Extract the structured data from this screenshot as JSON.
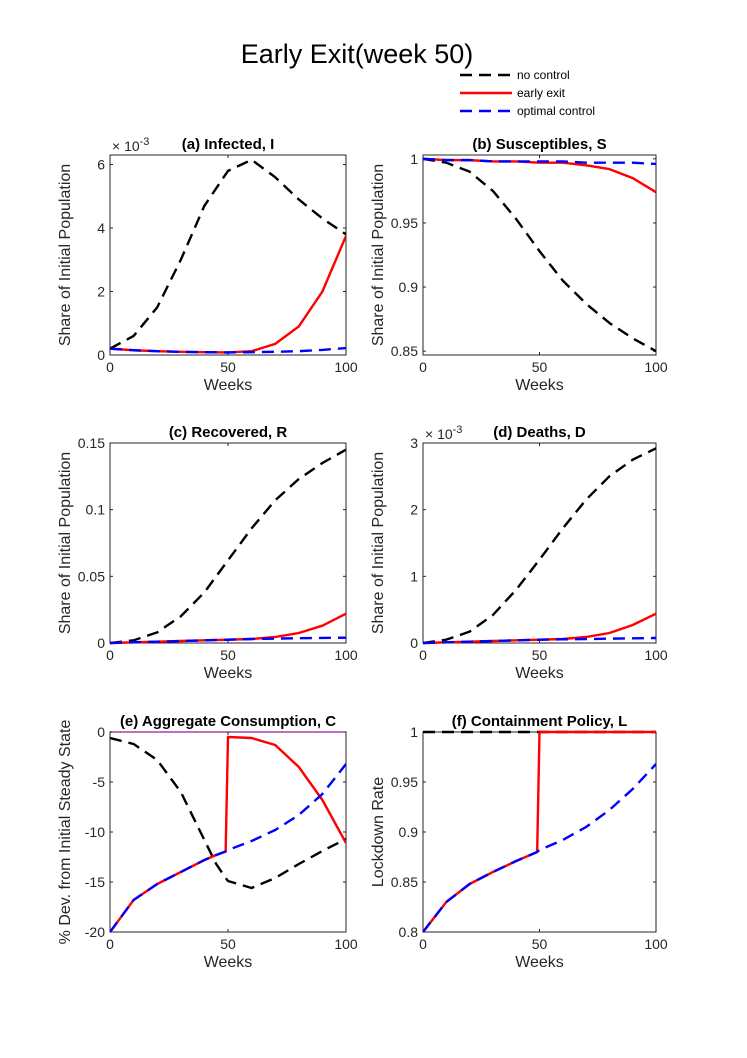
{
  "figure_title": "Early Exit(week 50)",
  "legend": [
    {
      "label": "no control",
      "color": "#000000",
      "dash": "dashed"
    },
    {
      "label": "early exit",
      "color": "#ff0000",
      "dash": "solid"
    },
    {
      "label": "optimal control",
      "color": "#0000ff",
      "dash": "dashed"
    }
  ],
  "chart_data": [
    {
      "type": "line",
      "title": "(a) Infected, I",
      "xlabel": "Weeks",
      "ylabel": "Share of Initial Population",
      "xlim": [
        0,
        100
      ],
      "ylim": [
        0,
        6.3
      ],
      "xticks": [
        "0",
        "50",
        "100"
      ],
      "yticks": [
        "0",
        "2",
        "4",
        "6"
      ],
      "ytick_values": [
        0,
        2,
        4,
        6
      ],
      "exponent_label": "× 10",
      "exponent_power": "-3",
      "x": [
        0,
        10,
        20,
        30,
        40,
        50,
        60,
        70,
        80,
        90,
        100
      ],
      "series": [
        {
          "name": "no control",
          "values": [
            0.2,
            0.6,
            1.5,
            3.0,
            4.7,
            5.8,
            6.15,
            5.6,
            4.9,
            4.3,
            3.8
          ]
        },
        {
          "name": "early exit",
          "values": [
            0.2,
            0.15,
            0.12,
            0.1,
            0.09,
            0.08,
            0.12,
            0.35,
            0.9,
            2.0,
            3.75
          ]
        },
        {
          "name": "optimal control",
          "values": [
            0.2,
            0.15,
            0.12,
            0.1,
            0.09,
            0.08,
            0.09,
            0.1,
            0.12,
            0.16,
            0.22
          ]
        }
      ]
    },
    {
      "type": "line",
      "title": "(b) Susceptibles, S",
      "xlabel": "Weeks",
      "ylabel": "Share of Initial Population",
      "xlim": [
        0,
        100
      ],
      "ylim": [
        0.847,
        1.003
      ],
      "xticks": [
        "0",
        "50",
        "100"
      ],
      "yticks": [
        "0.85",
        "0.9",
        "0.95",
        "1"
      ],
      "ytick_values": [
        0.85,
        0.9,
        0.95,
        1.0
      ],
      "x": [
        0,
        10,
        20,
        30,
        40,
        50,
        60,
        70,
        80,
        90,
        100
      ],
      "series": [
        {
          "name": "no control",
          "values": [
            1.0,
            0.997,
            0.99,
            0.975,
            0.953,
            0.928,
            0.905,
            0.887,
            0.872,
            0.86,
            0.85
          ]
        },
        {
          "name": "early exit",
          "values": [
            1.0,
            0.999,
            0.999,
            0.998,
            0.998,
            0.997,
            0.997,
            0.995,
            0.992,
            0.985,
            0.974
          ]
        },
        {
          "name": "optimal control",
          "values": [
            1.0,
            0.999,
            0.999,
            0.998,
            0.998,
            0.998,
            0.998,
            0.997,
            0.997,
            0.997,
            0.996
          ]
        }
      ]
    },
    {
      "type": "line",
      "title": "(c) Recovered, R",
      "xlabel": "Weeks",
      "ylabel": "Share of Initial Population",
      "xlim": [
        0,
        100
      ],
      "ylim": [
        0,
        0.15
      ],
      "xticks": [
        "0",
        "50",
        "100"
      ],
      "yticks": [
        "0",
        "0.05",
        "0.1",
        "0.15"
      ],
      "ytick_values": [
        0,
        0.05,
        0.1,
        0.15
      ],
      "x": [
        0,
        10,
        20,
        30,
        40,
        50,
        60,
        70,
        80,
        90,
        100
      ],
      "series": [
        {
          "name": "no control",
          "values": [
            0.0,
            0.002,
            0.008,
            0.02,
            0.038,
            0.062,
            0.086,
            0.107,
            0.123,
            0.135,
            0.145
          ]
        },
        {
          "name": "early exit",
          "values": [
            0.0,
            0.0005,
            0.001,
            0.0015,
            0.002,
            0.0025,
            0.003,
            0.0045,
            0.0075,
            0.013,
            0.022
          ]
        },
        {
          "name": "optimal control",
          "values": [
            0.0,
            0.0005,
            0.001,
            0.0015,
            0.002,
            0.0025,
            0.003,
            0.0033,
            0.0036,
            0.0038,
            0.004
          ]
        }
      ]
    },
    {
      "type": "line",
      "title": "(d) Deaths, D",
      "xlabel": "Weeks",
      "ylabel": "Share of Initial Population",
      "xlim": [
        0,
        100
      ],
      "ylim": [
        0,
        3
      ],
      "xticks": [
        "0",
        "50",
        "100"
      ],
      "yticks": [
        "0",
        "1",
        "2",
        "3"
      ],
      "ytick_values": [
        0,
        1,
        2,
        3
      ],
      "exponent_label": "× 10",
      "exponent_power": "-3",
      "x": [
        0,
        10,
        20,
        30,
        40,
        50,
        60,
        70,
        80,
        90,
        100
      ],
      "series": [
        {
          "name": "no control",
          "values": [
            0.0,
            0.05,
            0.17,
            0.42,
            0.8,
            1.25,
            1.72,
            2.15,
            2.5,
            2.75,
            2.92
          ]
        },
        {
          "name": "early exit",
          "values": [
            0.0,
            0.01,
            0.02,
            0.03,
            0.04,
            0.05,
            0.06,
            0.09,
            0.15,
            0.27,
            0.44
          ]
        },
        {
          "name": "optimal control",
          "values": [
            0.0,
            0.01,
            0.02,
            0.03,
            0.04,
            0.05,
            0.055,
            0.06,
            0.065,
            0.07,
            0.075
          ]
        }
      ]
    },
    {
      "type": "line",
      "title": "(e) Aggregate Consumption, C",
      "xlabel": "Weeks",
      "ylabel": "% Dev. from Initial Steady State",
      "xlim": [
        0,
        100
      ],
      "ylim": [
        -20,
        0
      ],
      "xticks": [
        "0",
        "50",
        "100"
      ],
      "yticks": [
        "-20",
        "-15",
        "-10",
        "-5",
        "0"
      ],
      "ytick_values": [
        -20,
        -15,
        -10,
        -5,
        0
      ],
      "reference_line": 0,
      "x": [
        0,
        10,
        20,
        30,
        40,
        45,
        49,
        50,
        60,
        70,
        80,
        90,
        100
      ],
      "series": [
        {
          "name": "no control",
          "values": [
            -0.6,
            -1.2,
            -2.8,
            -6.0,
            -10.8,
            -13.2,
            -14.6,
            -14.9,
            -15.6,
            -14.6,
            -13.2,
            -11.9,
            -10.7
          ]
        },
        {
          "name": "early exit",
          "values": [
            -20.0,
            -16.8,
            -15.2,
            -14.0,
            -12.8,
            -12.3,
            -11.95,
            -0.5,
            -0.6,
            -1.3,
            -3.5,
            -6.8,
            -11.1
          ]
        },
        {
          "name": "optimal control",
          "values": [
            -20.0,
            -16.8,
            -15.2,
            -14.0,
            -12.8,
            -12.3,
            -11.95,
            -11.8,
            -10.9,
            -9.8,
            -8.3,
            -6.2,
            -3.2
          ]
        }
      ]
    },
    {
      "type": "line",
      "title": "(f) Containment Policy, L",
      "xlabel": "Weeks",
      "ylabel": "Lockdown Rate",
      "xlim": [
        0,
        100
      ],
      "ylim": [
        0.8,
        1.0
      ],
      "xticks": [
        "0",
        "50",
        "100"
      ],
      "yticks": [
        "0.8",
        "0.85",
        "0.9",
        "0.95",
        "1"
      ],
      "ytick_values": [
        0.8,
        0.85,
        0.9,
        0.95,
        1.0
      ],
      "x": [
        0,
        10,
        20,
        30,
        40,
        45,
        49,
        50,
        60,
        70,
        80,
        90,
        100
      ],
      "series": [
        {
          "name": "no control",
          "values": [
            1,
            1,
            1,
            1,
            1,
            1,
            1,
            1,
            1,
            1,
            1,
            1,
            1
          ]
        },
        {
          "name": "early exit",
          "values": [
            0.8,
            0.83,
            0.848,
            0.86,
            0.871,
            0.876,
            0.88,
            1.0,
            1.0,
            1.0,
            1.0,
            1.0,
            1.0
          ]
        },
        {
          "name": "optimal control",
          "values": [
            0.8,
            0.83,
            0.848,
            0.86,
            0.871,
            0.876,
            0.88,
            0.882,
            0.892,
            0.905,
            0.922,
            0.943,
            0.968
          ]
        }
      ]
    }
  ]
}
